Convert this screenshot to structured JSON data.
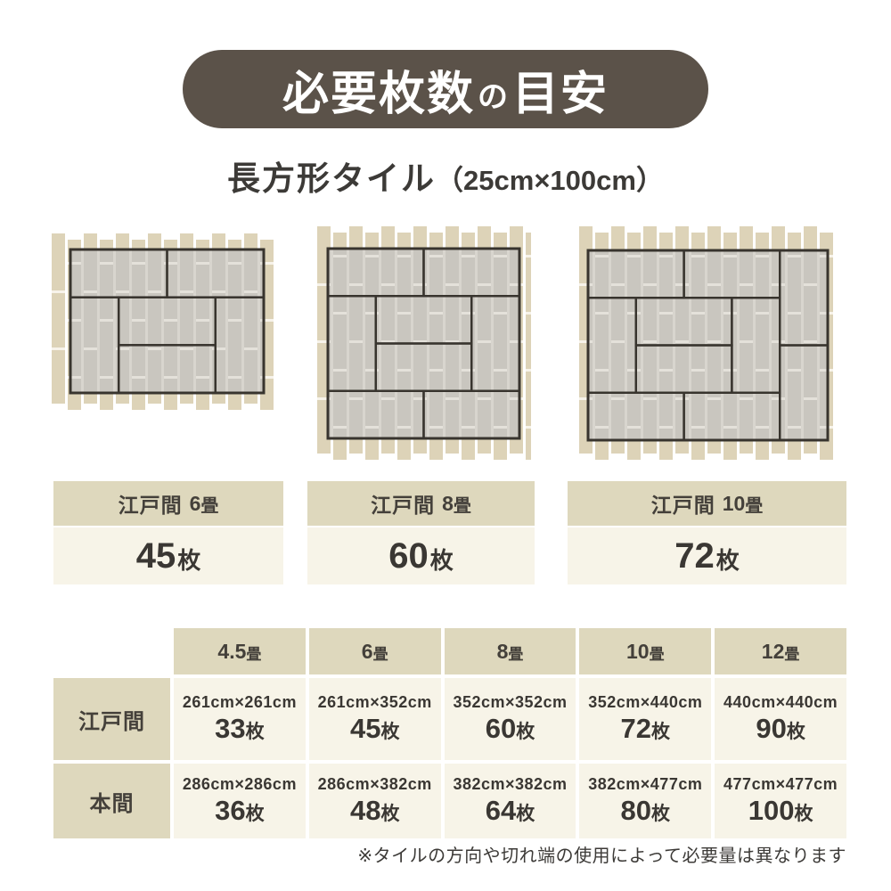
{
  "title": {
    "main1": "必要枚数",
    "particle": "の",
    "main2": "目安"
  },
  "subtitle": {
    "name": "長方形タイル",
    "size": "（25cm×100cm）"
  },
  "colors": {
    "banner_bg": "#5b5249",
    "header_beige": "#ded8bd",
    "cell_cream": "#f7f4e8",
    "outer_tile": "#ddd3b8",
    "room_tile": "#c9c6bf",
    "mat_line": "#38342e",
    "ink": "#3e3a36"
  },
  "diagrams": [
    {
      "id": "edo6",
      "room": "江戸間",
      "size_num": "6",
      "size_unit": "畳",
      "count": "45",
      "count_unit": "枚"
    },
    {
      "id": "edo8",
      "room": "江戸間",
      "size_num": "8",
      "size_unit": "畳",
      "count": "60",
      "count_unit": "枚"
    },
    {
      "id": "edo10",
      "room": "江戸間",
      "size_num": "10",
      "size_unit": "畳",
      "count": "72",
      "count_unit": "枚"
    }
  ],
  "table": {
    "col_headers": [
      {
        "num": "4.5",
        "unit": "畳"
      },
      {
        "num": "6",
        "unit": "畳"
      },
      {
        "num": "8",
        "unit": "畳"
      },
      {
        "num": "10",
        "unit": "畳"
      },
      {
        "num": "12",
        "unit": "畳"
      }
    ],
    "rows": [
      {
        "header": "江戸間",
        "cells": [
          {
            "dims": "261cm×261cm",
            "count": "33",
            "unit": "枚"
          },
          {
            "dims": "261cm×352cm",
            "count": "45",
            "unit": "枚"
          },
          {
            "dims": "352cm×352cm",
            "count": "60",
            "unit": "枚"
          },
          {
            "dims": "352cm×440cm",
            "count": "72",
            "unit": "枚"
          },
          {
            "dims": "440cm×440cm",
            "count": "90",
            "unit": "枚"
          }
        ]
      },
      {
        "header": "本間",
        "cells": [
          {
            "dims": "286cm×286cm",
            "count": "36",
            "unit": "枚"
          },
          {
            "dims": "286cm×382cm",
            "count": "48",
            "unit": "枚"
          },
          {
            "dims": "382cm×382cm",
            "count": "64",
            "unit": "枚"
          },
          {
            "dims": "382cm×477cm",
            "count": "80",
            "unit": "枚"
          },
          {
            "dims": "477cm×477cm",
            "count": "100",
            "unit": "枚"
          }
        ]
      }
    ]
  },
  "footnote": "※タイルの方向や切れ端の使用によって必要量は異なります"
}
